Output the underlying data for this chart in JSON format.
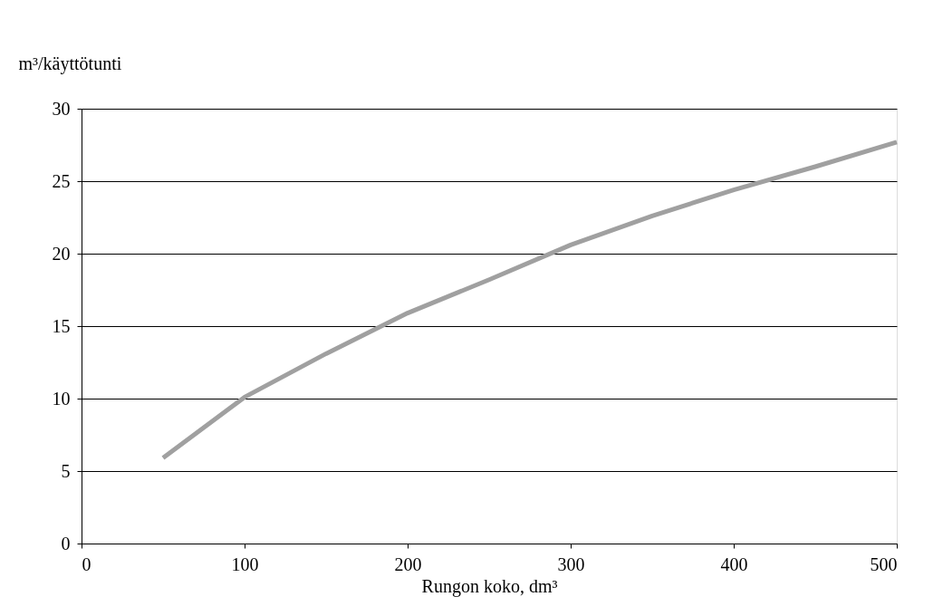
{
  "chart_data": {
    "type": "line",
    "xlabel": "Rungon koko, dm³",
    "ylabel": "m³/käyttötunti",
    "x": [
      50,
      100,
      150,
      200,
      250,
      300,
      350,
      400,
      450,
      500
    ],
    "series": [
      {
        "color": "#a0a0a0",
        "values": [
          5.9,
          10.1,
          13.1,
          15.9,
          18.2,
          20.6,
          22.6,
          24.4,
          26.0,
          27.7
        ]
      }
    ],
    "xlim": [
      0,
      500
    ],
    "xticks": [
      0,
      100,
      200,
      300,
      400,
      500
    ],
    "ylim": [
      0,
      30
    ],
    "yticks": [
      0,
      5,
      10,
      15,
      20,
      25,
      30
    ],
    "grid": "y",
    "marker": "none",
    "line_style": "solid"
  }
}
